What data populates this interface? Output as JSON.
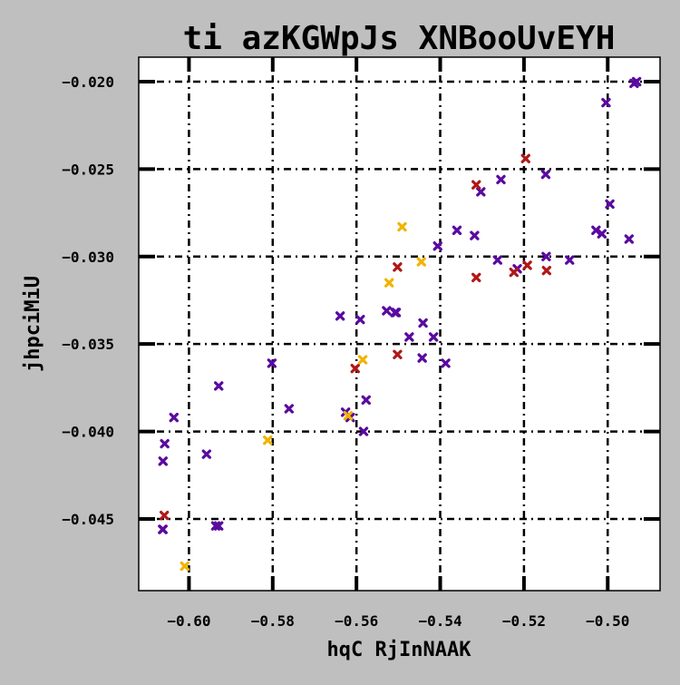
{
  "chart_data": {
    "type": "scatter",
    "title": "ti azKGWpJs XNBooUvEYH",
    "xlabel": "hqC  RjInNAAK",
    "ylabel": "jhpciMiU",
    "xlim": [
      -0.612,
      -0.4875
    ],
    "ylim": [
      -0.0491,
      -0.0186
    ],
    "xticks": [
      -0.6,
      -0.58,
      -0.56,
      -0.54,
      -0.52,
      -0.5
    ],
    "xtick_labels": [
      "−0.60",
      "−0.58",
      "−0.56",
      "−0.54",
      "−0.52",
      "−0.50"
    ],
    "yticks": [
      -0.02,
      -0.025,
      -0.03,
      -0.035,
      -0.04,
      -0.045
    ],
    "ytick_labels": [
      "−0.020",
      "−0.025",
      "−0.030",
      "−0.035",
      "−0.040",
      "−0.045"
    ],
    "grid": true,
    "marker": "x",
    "series": [
      {
        "name": "purple",
        "color": "#5a0aa0",
        "x": [
          -0.6062,
          -0.6062,
          -0.6058,
          -0.6036,
          -0.6063,
          -0.5958,
          -0.5929,
          -0.5936,
          -0.5929,
          -0.5802,
          -0.5761,
          -0.5639,
          -0.5626,
          -0.5615,
          -0.5591,
          -0.5583,
          -0.5577,
          -0.5528,
          -0.5508,
          -0.5505,
          -0.5474,
          -0.5443,
          -0.5441,
          -0.5416,
          -0.5406,
          -0.5387,
          -0.536,
          -0.5318,
          -0.5303,
          -0.5263,
          -0.5255,
          -0.5216,
          -0.5148,
          -0.5147,
          -0.5091,
          -0.5028,
          -0.5014,
          -0.5004,
          -0.4995,
          -0.4949,
          -0.4937,
          -0.4931
        ],
        "y": [
          -0.0456,
          -0.0417,
          -0.0407,
          -0.0392,
          -0.0456,
          -0.0413,
          -0.0374,
          -0.0454,
          -0.0454,
          -0.0361,
          -0.0387,
          -0.0334,
          -0.0389,
          -0.0392,
          -0.0336,
          -0.04,
          -0.0382,
          -0.0331,
          -0.0332,
          -0.0332,
          -0.0346,
          -0.0358,
          -0.0338,
          -0.0346,
          -0.0294,
          -0.0361,
          -0.0285,
          -0.0288,
          -0.0263,
          -0.0302,
          -0.0256,
          -0.0307,
          -0.0253,
          -0.03,
          -0.0302,
          -0.0285,
          -0.0287,
          -0.0212,
          -0.027,
          -0.029,
          -0.0201,
          -0.02
        ]
      },
      {
        "name": "red",
        "color": "#b01818",
        "x": [
          -0.6059,
          -0.5603,
          -0.5502,
          -0.5502,
          -0.5314,
          -0.5314,
          -0.5224,
          -0.5196,
          -0.5192,
          -0.5146
        ],
        "y": [
          -0.0448,
          -0.0364,
          -0.0306,
          -0.0356,
          -0.0259,
          -0.0312,
          -0.0309,
          -0.0244,
          -0.0305,
          -0.0308
        ]
      },
      {
        "name": "yellow",
        "color": "#f0b400",
        "x": [
          -0.601,
          -0.5812,
          -0.562,
          -0.5585,
          -0.5522,
          -0.5491,
          -0.5445
        ],
        "y": [
          -0.0477,
          -0.0405,
          -0.0391,
          -0.0359,
          -0.0315,
          -0.0283,
          -0.0303
        ]
      }
    ]
  }
}
